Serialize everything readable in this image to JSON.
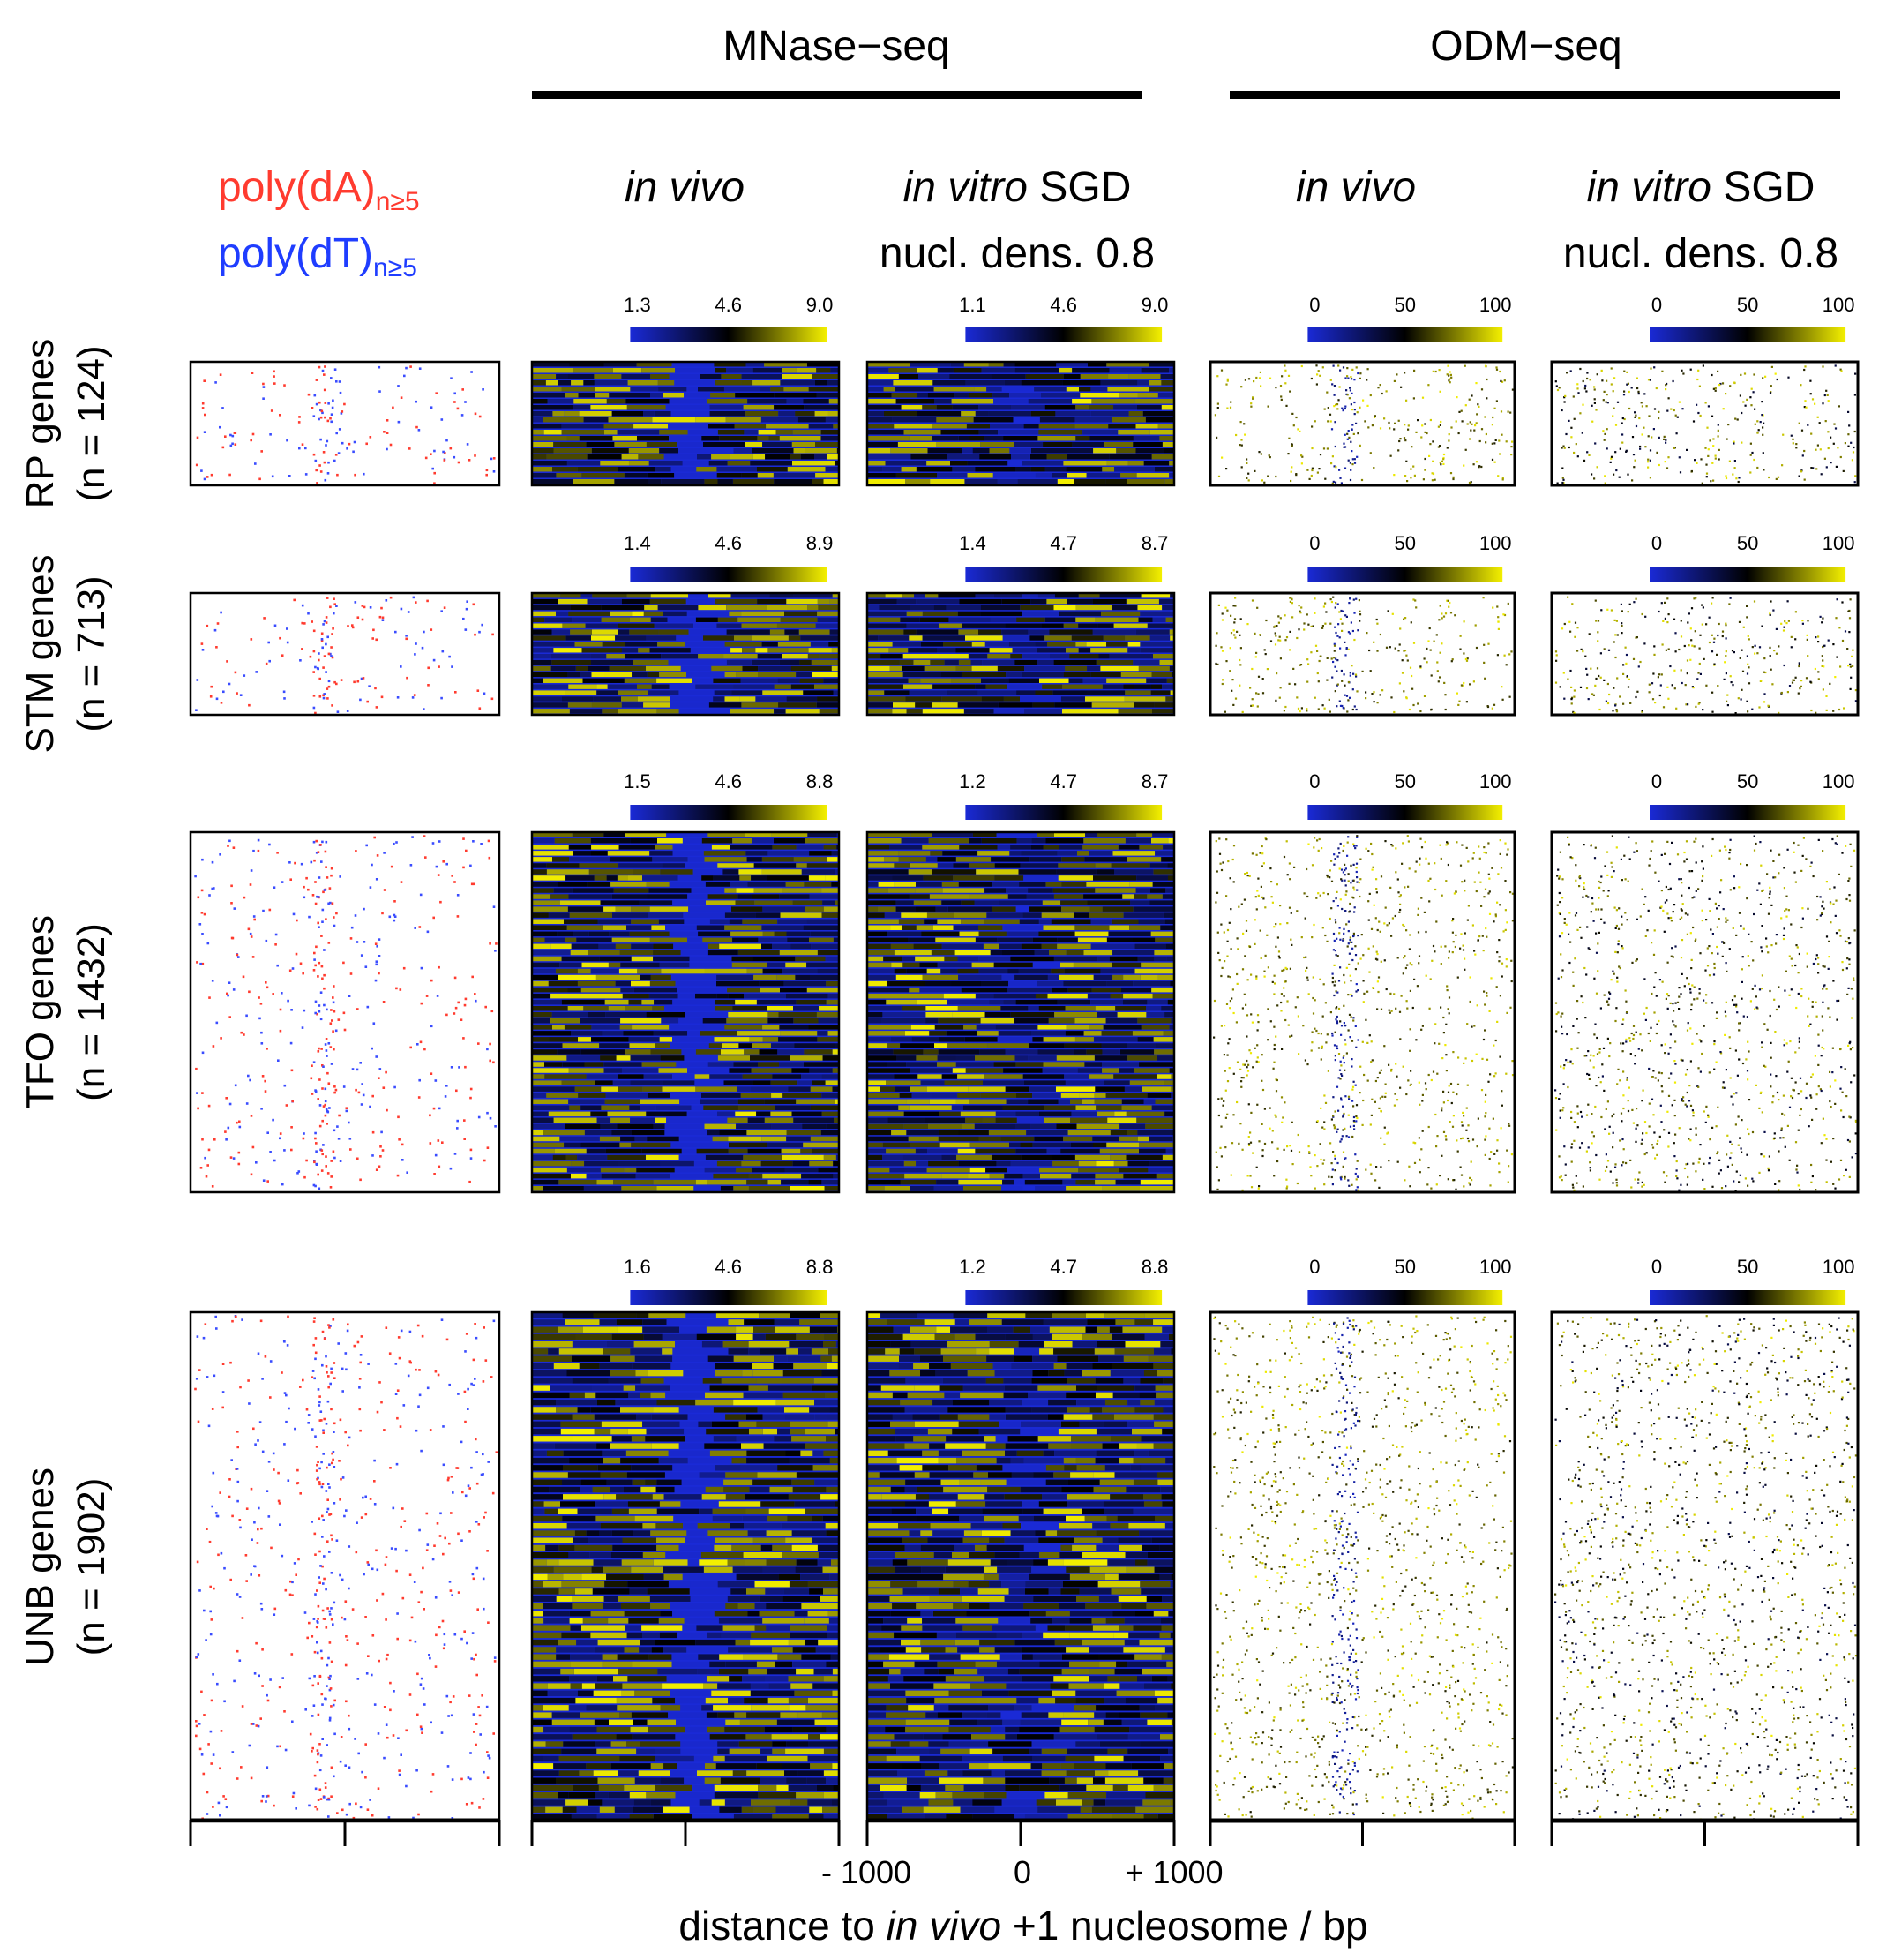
{
  "chart_data": {
    "type": "heatmap",
    "groups": [
      {
        "label": "MNase−seq"
      },
      {
        "label": "ODM−seq"
      }
    ],
    "columns": [
      {
        "id": "polyA",
        "legend": [
          {
            "text": "poly(dA)",
            "sub": "n≥5",
            "color": "#ff3b2f"
          },
          {
            "text": "poly(dT)",
            "sub": "n≥5",
            "color": "#1f3dff"
          }
        ]
      },
      {
        "id": "mnase-vivo",
        "title_italic": "in vivo",
        "title_rest": "",
        "title_line2": ""
      },
      {
        "id": "mnase-vitro",
        "title_italic": "in vitro",
        "title_rest": " SGD",
        "title_line2": "nucl. dens. 0.8"
      },
      {
        "id": "odm-vivo",
        "title_italic": "in vivo",
        "title_rest": "",
        "title_line2": ""
      },
      {
        "id": "odm-vitro",
        "title_italic": "in vitro",
        "title_rest": " SGD",
        "title_line2": "nucl. dens. 0.8"
      }
    ],
    "rows": [
      {
        "label1": "RP genes",
        "label2": "(n = 124)",
        "n": 124,
        "scales": [
          [
            "1.3",
            "4.6",
            "9.0"
          ],
          [
            "1.1",
            "4.6",
            "9.0"
          ],
          [
            "0",
            "50",
            "100"
          ],
          [
            "0",
            "50",
            "100"
          ]
        ]
      },
      {
        "label1": "STM genes",
        "label2": "(n = 713)",
        "n": 713,
        "scales": [
          [
            "1.4",
            "4.6",
            "8.9"
          ],
          [
            "1.4",
            "4.7",
            "8.7"
          ],
          [
            "0",
            "50",
            "100"
          ],
          [
            "0",
            "50",
            "100"
          ]
        ]
      },
      {
        "label1": "TFO genes",
        "label2": "(n = 1432)",
        "n": 1432,
        "scales": [
          [
            "1.5",
            "4.6",
            "8.8"
          ],
          [
            "1.2",
            "4.7",
            "8.7"
          ],
          [
            "0",
            "50",
            "100"
          ],
          [
            "0",
            "50",
            "100"
          ]
        ]
      },
      {
        "label1": "UNB genes",
        "label2": "(n = 1902)",
        "n": 1902,
        "scales": [
          [
            "1.6",
            "4.6",
            "8.8"
          ],
          [
            "1.2",
            "4.7",
            "8.8"
          ],
          [
            "0",
            "50",
            "100"
          ],
          [
            "0",
            "50",
            "100"
          ]
        ]
      }
    ],
    "colormap": [
      "#1a2ad6",
      "#000000",
      "#f4f000"
    ],
    "x_ticks": [
      "- 1000",
      "0",
      "+ 1000"
    ],
    "xlabel_pre": "distance to ",
    "xlabel_italic": "in vivo",
    "xlabel_post": " +1 nucleosome / bp",
    "xlim": [
      -1000,
      1000
    ]
  }
}
